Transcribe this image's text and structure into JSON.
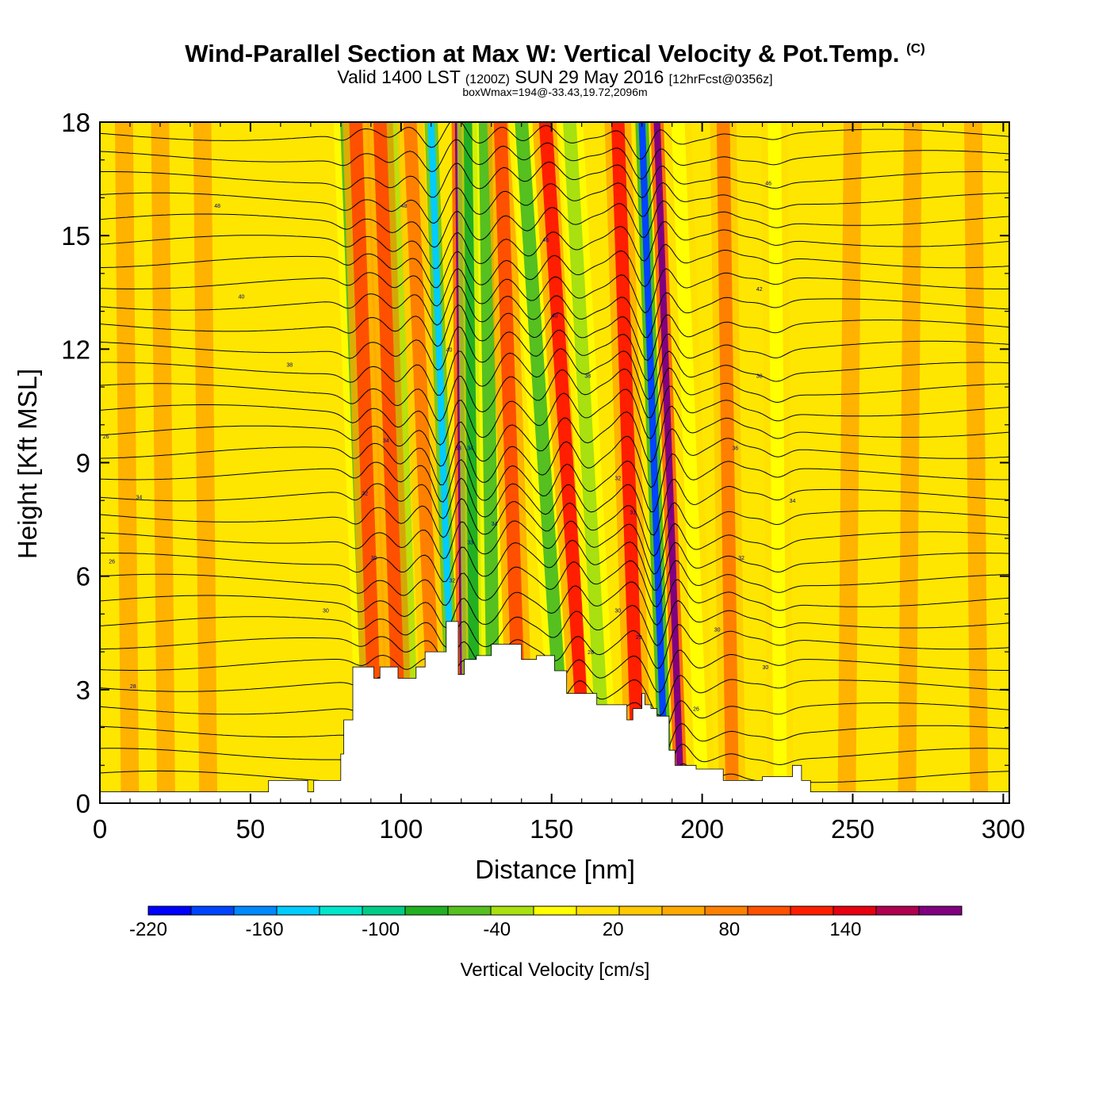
{
  "header": {
    "title": "Wind-Parallel Section at Max W: Vertical Velocity & Pot.Temp.",
    "copyright": "(C)",
    "valid_prefix": "Valid 1400 LST",
    "valid_utc": "(1200Z)",
    "valid_date": "SUN 29 May 2016",
    "forecast": "[12hrFcst@0356z]",
    "boxwmax": "boxWmax=194@-33.43,19.72,2096m"
  },
  "chart_data": {
    "type": "heatmap",
    "title": "Wind-Parallel Section at Max W: Vertical Velocity & Pot.Temp.",
    "xlabel": "Distance [nm]",
    "ylabel": "Height [Kft MSL]",
    "xlim": [
      0,
      302
    ],
    "ylim": [
      0,
      18
    ],
    "xticks": [
      "0",
      "50",
      "100",
      "150",
      "200",
      "250",
      "300"
    ],
    "yticks": [
      "0",
      "3",
      "6",
      "9",
      "12",
      "15",
      "18"
    ],
    "colorbar": {
      "label": "Vertical Velocity [cm/s]",
      "range": [
        -220,
        200
      ],
      "step": 20,
      "tick_labels": [
        "-220",
        "-160",
        "-100",
        "-40",
        "20",
        "80",
        "140"
      ],
      "colors": [
        "#0000ff",
        "#0044ff",
        "#0088ff",
        "#00ccff",
        "#00e6cc",
        "#00cc88",
        "#22b022",
        "#55c020",
        "#a8e010",
        "#ffff00",
        "#ffe000",
        "#ffc800",
        "#ffa800",
        "#ff8000",
        "#ff5000",
        "#ff1e00",
        "#e60010",
        "#b00050",
        "#800080"
      ]
    },
    "terrain_kft": [
      [
        0,
        0.3
      ],
      [
        56,
        0.3
      ],
      [
        56,
        0.6
      ],
      [
        69,
        0.6
      ],
      [
        69,
        0.3
      ],
      [
        71,
        0.3
      ],
      [
        71,
        0.6
      ],
      [
        80,
        0.6
      ],
      [
        80,
        1.3
      ],
      [
        81,
        1.3
      ],
      [
        81,
        2.2
      ],
      [
        84,
        2.2
      ],
      [
        84,
        3.6
      ],
      [
        91,
        3.6
      ],
      [
        91,
        3.3
      ],
      [
        93,
        3.3
      ],
      [
        93,
        3.6
      ],
      [
        99,
        3.6
      ],
      [
        99,
        3.3
      ],
      [
        105,
        3.3
      ],
      [
        105,
        3.6
      ],
      [
        108,
        3.6
      ],
      [
        108,
        4.0
      ],
      [
        115,
        4.0
      ],
      [
        115,
        4.8
      ],
      [
        119,
        4.8
      ],
      [
        119,
        3.4
      ],
      [
        121,
        3.4
      ],
      [
        121,
        3.8
      ],
      [
        125,
        3.8
      ],
      [
        125,
        3.9
      ],
      [
        130,
        3.9
      ],
      [
        130,
        4.2
      ],
      [
        140,
        4.2
      ],
      [
        140,
        3.8
      ],
      [
        145,
        3.8
      ],
      [
        145,
        3.9
      ],
      [
        151,
        3.9
      ],
      [
        151,
        3.5
      ],
      [
        155,
        3.5
      ],
      [
        155,
        2.9
      ],
      [
        165,
        2.9
      ],
      [
        165,
        2.6
      ],
      [
        175,
        2.6
      ],
      [
        175,
        2.2
      ],
      [
        177,
        2.2
      ],
      [
        177,
        2.5
      ],
      [
        180,
        2.5
      ],
      [
        180,
        2.9
      ],
      [
        181,
        2.9
      ],
      [
        181,
        2.6
      ],
      [
        183,
        2.6
      ],
      [
        183,
        2.5
      ],
      [
        185,
        2.5
      ],
      [
        185,
        2.3
      ],
      [
        189,
        2.3
      ],
      [
        189,
        1.4
      ],
      [
        191,
        1.4
      ],
      [
        191,
        1.0
      ],
      [
        198,
        1.0
      ],
      [
        198,
        0.9
      ],
      [
        207,
        0.9
      ],
      [
        207,
        0.6
      ],
      [
        220,
        0.6
      ],
      [
        220,
        0.7
      ],
      [
        230,
        0.7
      ],
      [
        230,
        1.0
      ],
      [
        233,
        1.0
      ],
      [
        233,
        0.6
      ],
      [
        236,
        0.6
      ],
      [
        236,
        0.3
      ],
      [
        302,
        0.3
      ]
    ],
    "vertical_velocity_bands": [
      {
        "x_low": 90,
        "x_high": 82,
        "value": -80
      },
      {
        "x_low": 92,
        "x_high": 85,
        "value": 60
      },
      {
        "x_low": 102,
        "x_high": 95,
        "value": -100
      },
      {
        "x_low": 100,
        "x_high": 93,
        "value": 60
      },
      {
        "x_low": 112,
        "x_high": 103,
        "value": 40
      },
      {
        "x_low": 118,
        "x_high": 110,
        "value": -160
      },
      {
        "x_low": 121,
        "x_high": 119,
        "value": 140
      },
      {
        "x_low": 125,
        "x_high": 123,
        "value": -100
      },
      {
        "x_low": 131,
        "x_high": 128,
        "value": -80
      },
      {
        "x_low": 140,
        "x_high": 133,
        "value": 60
      },
      {
        "x_low": 155,
        "x_high": 140,
        "value": -80
      },
      {
        "x_low": 162,
        "x_high": 148,
        "value": 80
      },
      {
        "x_low": 168,
        "x_high": 156,
        "value": -60
      },
      {
        "x_low": 179,
        "x_high": 172,
        "value": 80
      },
      {
        "x_low": 188,
        "x_high": 180,
        "value": -200
      },
      {
        "x_low": 193,
        "x_high": 185,
        "value": 140
      },
      {
        "x_low": 200,
        "x_high": 192,
        "value": -40
      },
      {
        "x_low": 210,
        "x_high": 207,
        "value": 40
      },
      {
        "x_low": 226,
        "x_high": 224,
        "value": -40
      }
    ],
    "potential_temperature_contours": {
      "units": "C",
      "labels": [
        {
          "text": "26",
          "x": 2,
          "y": 9.7
        },
        {
          "text": "26",
          "x": 4,
          "y": 6.4
        },
        {
          "text": "34",
          "x": 13,
          "y": 8.1
        },
        {
          "text": "28",
          "x": 11,
          "y": 3.1
        },
        {
          "text": "48",
          "x": 39,
          "y": 15.8
        },
        {
          "text": "40",
          "x": 47,
          "y": 13.4
        },
        {
          "text": "38",
          "x": 63,
          "y": 11.6
        },
        {
          "text": "30",
          "x": 75,
          "y": 5.1
        },
        {
          "text": "48",
          "x": 101,
          "y": 15.8
        },
        {
          "text": "34",
          "x": 95,
          "y": 9.6
        },
        {
          "text": "32",
          "x": 88,
          "y": 8.2
        },
        {
          "text": "30",
          "x": 91,
          "y": 6.5
        },
        {
          "text": "40",
          "x": 116,
          "y": 12.0
        },
        {
          "text": "33",
          "x": 119,
          "y": 9.4
        },
        {
          "text": "34",
          "x": 123,
          "y": 9.4
        },
        {
          "text": "33",
          "x": 123,
          "y": 6.9
        },
        {
          "text": "32",
          "x": 117,
          "y": 5.9
        },
        {
          "text": "34",
          "x": 131,
          "y": 7.4
        },
        {
          "text": "46",
          "x": 148,
          "y": 14.9
        },
        {
          "text": "40",
          "x": 151,
          "y": 12.9
        },
        {
          "text": "38",
          "x": 162,
          "y": 11.3
        },
        {
          "text": "32",
          "x": 172,
          "y": 8.6
        },
        {
          "text": "31",
          "x": 177,
          "y": 7.7
        },
        {
          "text": "30",
          "x": 172,
          "y": 5.1
        },
        {
          "text": "29",
          "x": 179,
          "y": 4.4
        },
        {
          "text": "28",
          "x": 163,
          "y": 4.0
        },
        {
          "text": "46",
          "x": 222,
          "y": 16.4
        },
        {
          "text": "42",
          "x": 219,
          "y": 13.6
        },
        {
          "text": "38",
          "x": 219,
          "y": 11.3
        },
        {
          "text": "36",
          "x": 211,
          "y": 9.4
        },
        {
          "text": "34",
          "x": 230,
          "y": 8.0
        },
        {
          "text": "32",
          "x": 213,
          "y": 6.5
        },
        {
          "text": "30",
          "x": 205,
          "y": 4.6
        },
        {
          "text": "30",
          "x": 221,
          "y": 3.6
        },
        {
          "text": "26",
          "x": 198,
          "y": 2.5
        }
      ]
    }
  }
}
